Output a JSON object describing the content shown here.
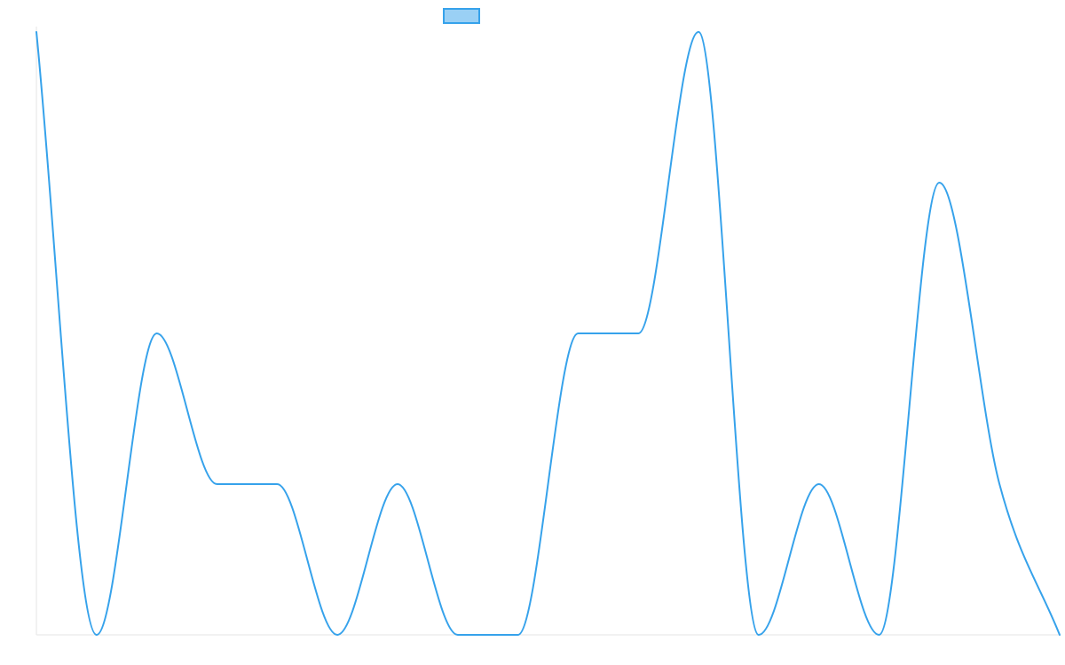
{
  "colors": {
    "series_stroke": "#36a2eb",
    "series_fill": "#9ad0f5",
    "axis": "#e6e6e6",
    "background": "#ffffff"
  },
  "chart_data": {
    "type": "line",
    "title": "",
    "xlabel": "",
    "ylabel": "",
    "grid": false,
    "legend": {
      "position": "top-center",
      "entries": [
        {
          "label": ""
        }
      ]
    },
    "x_range": [
      0,
      1.7
    ],
    "ylim": [
      0,
      4
    ],
    "x": [
      0,
      0.1,
      0.2,
      0.3,
      0.4,
      0.5,
      0.6,
      0.7,
      0.8,
      0.9,
      1.0,
      1.1,
      1.2,
      1.3,
      1.4,
      1.5,
      1.6,
      1.7
    ],
    "series": [
      {
        "values": [
          4,
          0,
          2,
          1,
          1,
          0,
          1,
          0,
          0,
          2,
          2,
          4,
          0,
          1,
          0,
          3,
          1,
          0
        ]
      }
    ]
  }
}
